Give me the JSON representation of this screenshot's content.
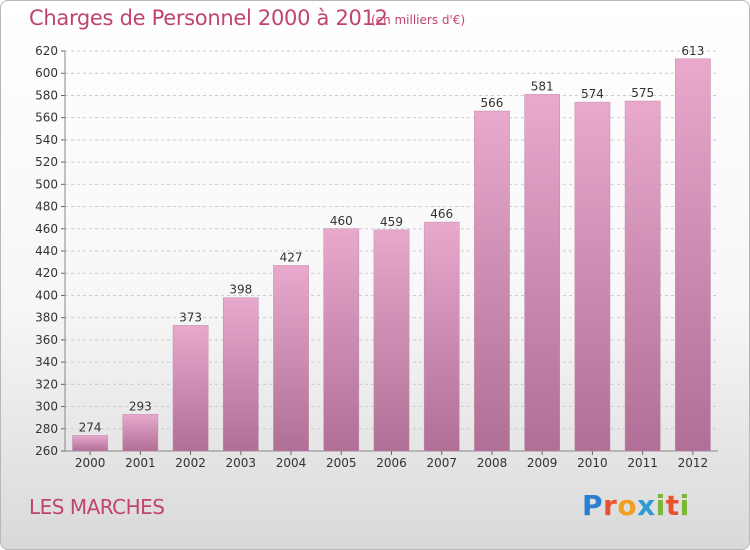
{
  "title": "Charges de Personnel 2000 à 2012",
  "subtitle": "(en milliers d'€)",
  "commune": "LES MARCHES",
  "logo": {
    "p": "P",
    "r": "r",
    "o": "o",
    "x": "x",
    "i": "i",
    "t": "t",
    "i2": "i"
  },
  "colors": {
    "title": "#c0456a",
    "bar_light": "#e8a9cd",
    "bar_dark": "#b06f96",
    "grid": "#cccccc"
  },
  "chart_data": {
    "type": "bar",
    "title": "Charges de Personnel 2000 à 2012",
    "ylabel": "en milliers d'€",
    "xlabel": "",
    "categories": [
      "2000",
      "2001",
      "2002",
      "2003",
      "2004",
      "2005",
      "2006",
      "2007",
      "2008",
      "2009",
      "2010",
      "2011",
      "2012"
    ],
    "values": [
      274,
      293,
      373,
      398,
      427,
      460,
      459,
      466,
      566,
      581,
      574,
      575,
      613
    ],
    "ylim": [
      260,
      620
    ],
    "ytick_step": 20,
    "grid": "horizontal-dashed",
    "legend": "none"
  }
}
